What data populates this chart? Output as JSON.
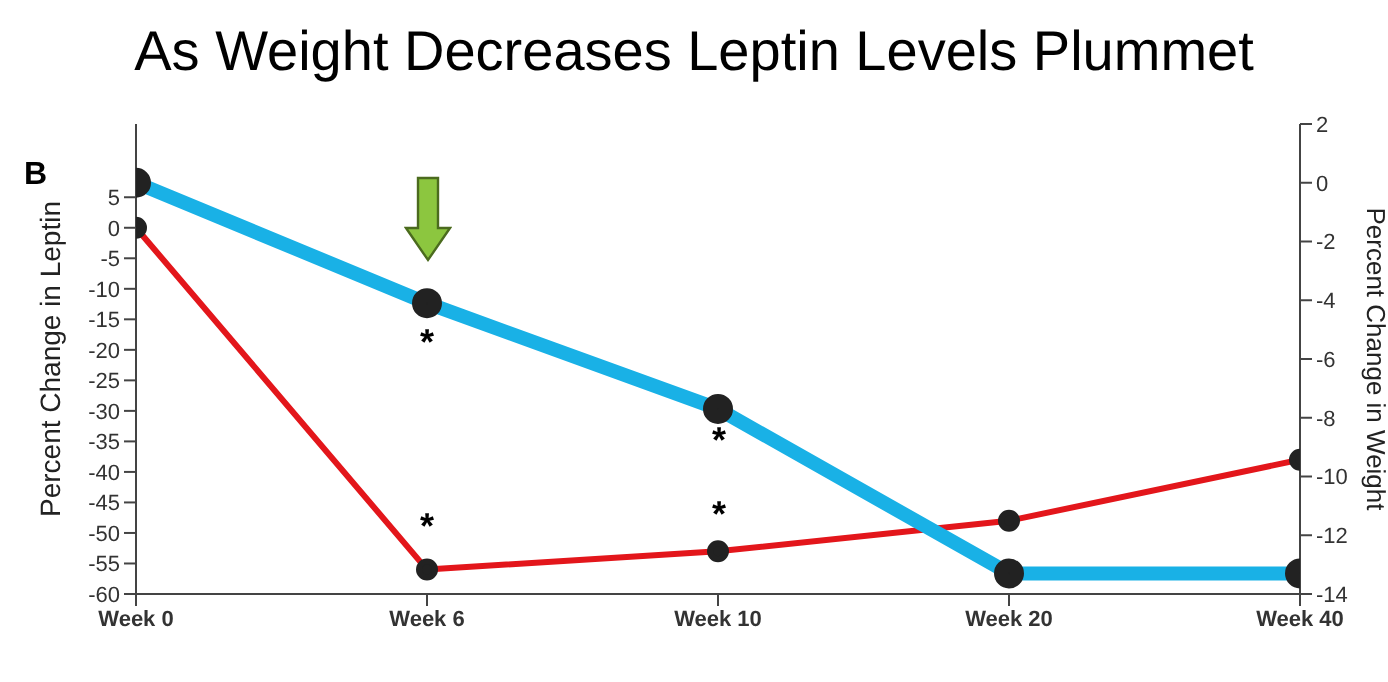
{
  "chart_data": {
    "type": "line",
    "title": "As Weight Decreases Leptin Levels Plummet",
    "ylabel": "Percent Change in Leptin",
    "y2label": "Percent Change in Weight",
    "categories": [
      "Week 0",
      "Week 6",
      "Week 10",
      "Week 20",
      "Week 40"
    ],
    "ylim": [
      -60,
      17
    ],
    "yticks": [
      -60,
      -55,
      -50,
      -45,
      -40,
      -35,
      -30,
      -25,
      -20,
      -15,
      -10,
      -5,
      0,
      5
    ],
    "y2lim": [
      -14,
      2
    ],
    "y2ticks": [
      -14,
      -12,
      -10,
      -8,
      -6,
      -4,
      -2,
      0,
      2
    ],
    "series": [
      {
        "color": "#e3161b",
        "values": [
          0,
          -56,
          -53,
          -48,
          -38
        ]
      },
      {
        "color": "#19b1e6",
        "axis": "y2",
        "values": [
          0,
          -4.1,
          -7.7,
          -13.3,
          -13.3
        ]
      }
    ],
    "marker": "circle",
    "annotations": [
      "B",
      "*",
      "*",
      "*",
      "*"
    ]
  }
}
